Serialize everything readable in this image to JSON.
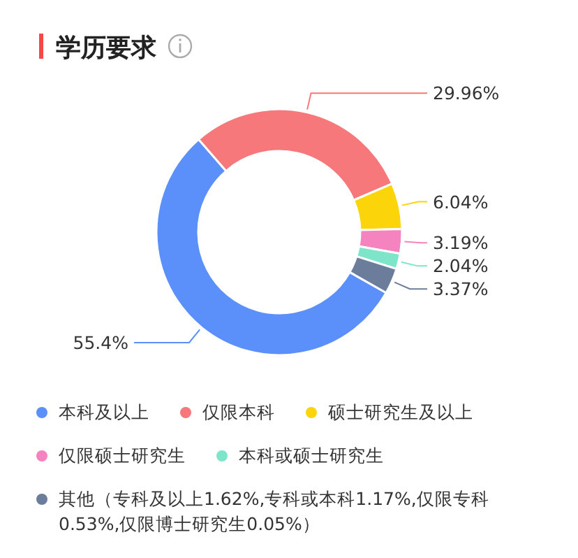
{
  "chart_data": {
    "type": "donut",
    "title": "学历要求",
    "categories": [
      "本科及以上",
      "仅限本科",
      "硕士研究生及以上",
      "仅限硕士研究生",
      "本科或硕士研究生",
      "其他（专科及以上1.62%,专科或本科1.17%,仅限专科0.53%,仅限博士研究生0.05%）"
    ],
    "values": [
      55.4,
      29.96,
      6.04,
      3.19,
      2.04,
      3.37
    ],
    "value_labels": [
      "55.4%",
      "29.96%",
      "6.04%",
      "3.19%",
      "2.04%",
      "3.37%"
    ],
    "colors": [
      "#5b8ff9",
      "#f6787a",
      "#fcd40a",
      "#f583c0",
      "#7ee5cb",
      "#6c7d9c"
    ],
    "legend": "bottom"
  }
}
